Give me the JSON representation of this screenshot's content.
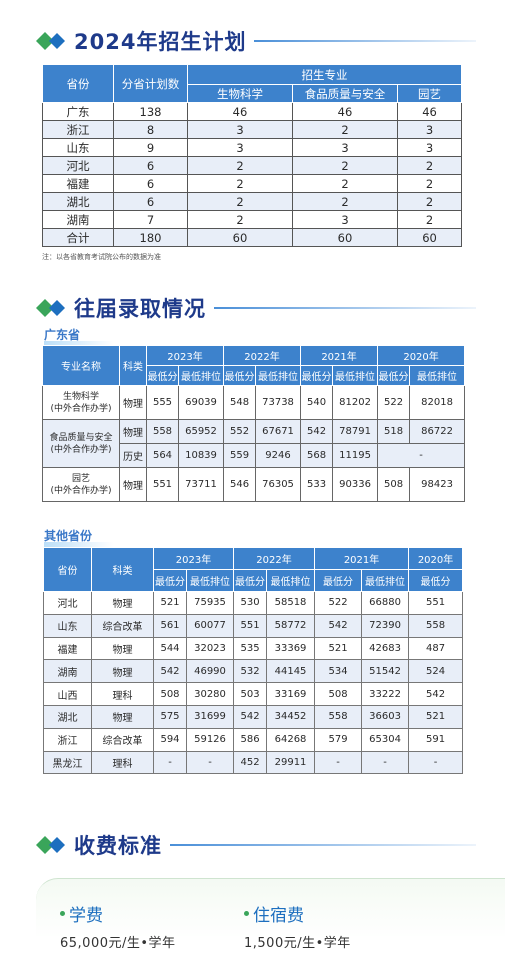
{
  "section1": {
    "title": "2024年招生计划"
  },
  "plan": {
    "headers": {
      "province": "省份",
      "total": "分省计划数",
      "majors_group": "招生专业",
      "m1": "生物科学",
      "m2": "食品质量与安全",
      "m3": "园艺"
    },
    "rows": [
      [
        "广东",
        "138",
        "46",
        "46",
        "46"
      ],
      [
        "浙江",
        "8",
        "3",
        "2",
        "3"
      ],
      [
        "山东",
        "9",
        "3",
        "3",
        "3"
      ],
      [
        "河北",
        "6",
        "2",
        "2",
        "2"
      ],
      [
        "福建",
        "6",
        "2",
        "2",
        "2"
      ],
      [
        "湖北",
        "6",
        "2",
        "2",
        "2"
      ],
      [
        "湖南",
        "7",
        "2",
        "3",
        "2"
      ],
      [
        "合计",
        "180",
        "60",
        "60",
        "60"
      ]
    ],
    "note": "注：以各省教育考试院公布的数据为准"
  },
  "section2": {
    "title": "往届录取情况"
  },
  "guangdong": {
    "label": "广东省",
    "headers": {
      "major": "专业名称",
      "subject": "科类",
      "y2023": "2023年",
      "y2022": "2022年",
      "y2021": "2021年",
      "y2020": "2020年",
      "min_score": "最低分",
      "min_rank": "最低排位"
    },
    "rows": [
      {
        "major": "生物科学\n(中外合作办学)",
        "subject": "物理",
        "v": [
          "555",
          "69039",
          "548",
          "73738",
          "540",
          "81202",
          "522",
          "82018"
        ]
      },
      {
        "major": "食品质量与安全\n(中外合作办学)",
        "subject": "物理",
        "v": [
          "558",
          "65952",
          "552",
          "67671",
          "542",
          "78791",
          "518",
          "86722"
        ]
      },
      {
        "subject": "历史",
        "v": [
          "564",
          "10839",
          "559",
          "9246",
          "568",
          "11195"
        ],
        "dash": "-"
      },
      {
        "major": "园艺\n(中外合作办学)",
        "subject": "物理",
        "v": [
          "551",
          "73711",
          "546",
          "76305",
          "533",
          "90336",
          "508",
          "98423"
        ]
      }
    ]
  },
  "others": {
    "label": "其他省份",
    "headers": {
      "province": "省份",
      "subject": "科类",
      "y2023": "2023年",
      "y2022": "2022年",
      "y2021": "2021年",
      "y2020": "2020年",
      "min_score": "最低分",
      "min_rank": "最低排位"
    },
    "rows": [
      [
        "河北",
        "物理",
        "521",
        "75935",
        "530",
        "58518",
        "522",
        "66880",
        "551"
      ],
      [
        "山东",
        "综合改革",
        "561",
        "60077",
        "551",
        "58772",
        "542",
        "72390",
        "558"
      ],
      [
        "福建",
        "物理",
        "544",
        "32023",
        "535",
        "33369",
        "521",
        "42683",
        "487"
      ],
      [
        "湖南",
        "物理",
        "542",
        "46990",
        "532",
        "44145",
        "534",
        "51542",
        "524"
      ],
      [
        "山西",
        "理科",
        "508",
        "30280",
        "503",
        "33169",
        "508",
        "33222",
        "542"
      ],
      [
        "湖北",
        "物理",
        "575",
        "31699",
        "542",
        "34452",
        "558",
        "36603",
        "521"
      ],
      [
        "浙江",
        "综合改革",
        "594",
        "59126",
        "586",
        "64268",
        "579",
        "65304",
        "591"
      ],
      [
        "黑龙江",
        "理科",
        "-",
        "-",
        "452",
        "29911",
        "-",
        "-",
        "-"
      ]
    ]
  },
  "section3": {
    "title": "收费标准"
  },
  "fees": {
    "tuition": {
      "label": "学费",
      "value": "65,000元/生•学年"
    },
    "lodging": {
      "label": "住宿费",
      "value": "1,500元/生•学年"
    }
  },
  "colors": {
    "header_blue": "#3d82cc",
    "title_navy": "#1e3a8a",
    "stripe": "#e8eef8",
    "accent_green": "#3aa55a"
  }
}
